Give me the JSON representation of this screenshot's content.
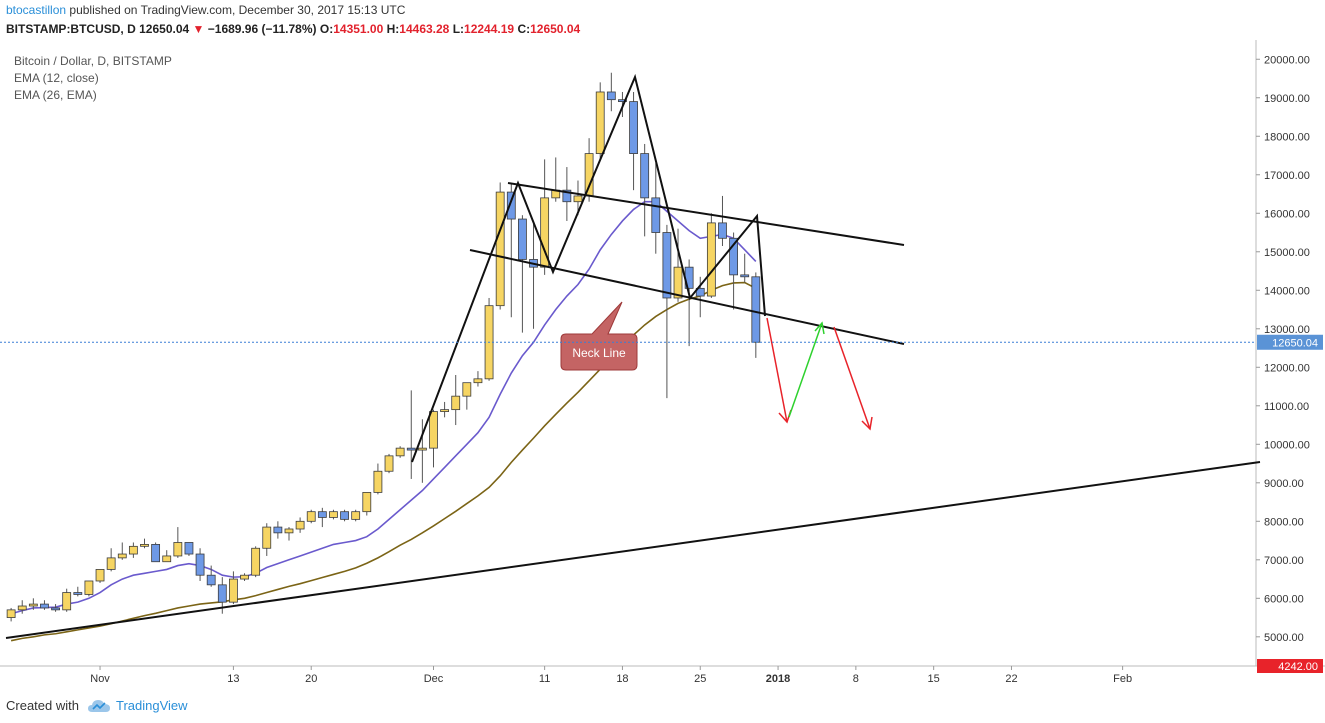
{
  "header": {
    "author": "btocastillon",
    "published": "published on TradingView.com, December 30, 2017 15:13 UTC",
    "symbol": "BITSTAMP:BTCUSD, D",
    "last": "12650.04",
    "change": "−1689.96 (−11.78%)",
    "o_label": "O:",
    "o": "14351.00",
    "h_label": "H:",
    "h": "14463.28",
    "l_label": "L:",
    "l": "12244.19",
    "c_label": "C:",
    "c": "12650.04"
  },
  "legend": {
    "title": "Bitcoin / Dollar, D, BITSTAMP",
    "ema1": "EMA (12, close)",
    "ema2": "EMA (26, EMA)"
  },
  "footer": {
    "created": "Created with",
    "brand": "TradingView"
  },
  "chart_data": {
    "type": "candlestick",
    "title": "Bitcoin / Dollar, D, BITSTAMP",
    "yaxis": {
      "range": [
        4242,
        20500
      ],
      "ticks": [
        5000,
        6000,
        7000,
        8000,
        9000,
        10000,
        11000,
        12000,
        13000,
        14000,
        15000,
        16000,
        17000,
        18000,
        19000,
        20000
      ],
      "tick_labels": [
        "5000.00",
        "6000.00",
        "7000.00",
        "8000.00",
        "9000.00",
        "10000.00",
        "11000.00",
        "12000.00",
        "13000.00",
        "14000.00",
        "15000.00",
        "16000.00",
        "17000.00",
        "18000.00",
        "19000.00",
        "20000.00"
      ]
    },
    "xaxis": {
      "range": [
        "2017-10-23",
        "2018-02-13"
      ],
      "ticks": [
        {
          "date": "2017-11-01",
          "label": "Nov"
        },
        {
          "date": "2017-11-13",
          "label": "13"
        },
        {
          "date": "2017-11-20",
          "label": "20"
        },
        {
          "date": "2017-12-01",
          "label": "Dec"
        },
        {
          "date": "2017-12-11",
          "label": "11"
        },
        {
          "date": "2017-12-18",
          "label": "18"
        },
        {
          "date": "2017-12-25",
          "label": "25"
        },
        {
          "date": "2018-01-01",
          "label": "2018"
        },
        {
          "date": "2018-01-08",
          "label": "8"
        },
        {
          "date": "2018-01-15",
          "label": "15"
        },
        {
          "date": "2018-01-22",
          "label": "22"
        },
        {
          "date": "2018-02-01",
          "label": "Feb"
        }
      ]
    },
    "price_line": {
      "value": 12650.04,
      "label": "12650.04"
    },
    "low_marker": {
      "value": 4242,
      "label": "4242.00"
    },
    "candles": [
      {
        "date": "2017-10-24",
        "o": 5500,
        "h": 5750,
        "l": 5400,
        "c": 5700
      },
      {
        "date": "2017-10-25",
        "o": 5700,
        "h": 5950,
        "l": 5600,
        "c": 5800
      },
      {
        "date": "2017-10-26",
        "o": 5800,
        "h": 6000,
        "l": 5700,
        "c": 5850
      },
      {
        "date": "2017-10-27",
        "o": 5850,
        "h": 5950,
        "l": 5700,
        "c": 5750
      },
      {
        "date": "2017-10-28",
        "o": 5750,
        "h": 5850,
        "l": 5650,
        "c": 5700
      },
      {
        "date": "2017-10-29",
        "o": 5700,
        "h": 6250,
        "l": 5650,
        "c": 6150
      },
      {
        "date": "2017-10-30",
        "o": 6150,
        "h": 6300,
        "l": 6050,
        "c": 6100
      },
      {
        "date": "2017-10-31",
        "o": 6100,
        "h": 6450,
        "l": 6050,
        "c": 6450
      },
      {
        "date": "2017-11-01",
        "o": 6450,
        "h": 6750,
        "l": 6400,
        "c": 6750
      },
      {
        "date": "2017-11-02",
        "o": 6750,
        "h": 7300,
        "l": 6700,
        "c": 7050
      },
      {
        "date": "2017-11-03",
        "o": 7050,
        "h": 7450,
        "l": 7000,
        "c": 7150
      },
      {
        "date": "2017-11-04",
        "o": 7150,
        "h": 7450,
        "l": 7050,
        "c": 7350
      },
      {
        "date": "2017-11-05",
        "o": 7350,
        "h": 7550,
        "l": 7300,
        "c": 7400
      },
      {
        "date": "2017-11-06",
        "o": 7400,
        "h": 7450,
        "l": 6950,
        "c": 6950
      },
      {
        "date": "2017-11-07",
        "o": 6950,
        "h": 7250,
        "l": 6950,
        "c": 7100
      },
      {
        "date": "2017-11-08",
        "o": 7100,
        "h": 7850,
        "l": 7050,
        "c": 7450
      },
      {
        "date": "2017-11-09",
        "o": 7450,
        "h": 7450,
        "l": 7100,
        "c": 7150
      },
      {
        "date": "2017-11-10",
        "o": 7150,
        "h": 7300,
        "l": 6450,
        "c": 6600
      },
      {
        "date": "2017-11-11",
        "o": 6600,
        "h": 6850,
        "l": 6300,
        "c": 6350
      },
      {
        "date": "2017-11-12",
        "o": 6350,
        "h": 6550,
        "l": 5600,
        "c": 5900
      },
      {
        "date": "2017-11-13",
        "o": 5900,
        "h": 6700,
        "l": 5850,
        "c": 6500
      },
      {
        "date": "2017-11-14",
        "o": 6500,
        "h": 6650,
        "l": 6450,
        "c": 6600
      },
      {
        "date": "2017-11-15",
        "o": 6600,
        "h": 7350,
        "l": 6550,
        "c": 7300
      },
      {
        "date": "2017-11-16",
        "o": 7300,
        "h": 7950,
        "l": 7100,
        "c": 7850
      },
      {
        "date": "2017-11-17",
        "o": 7850,
        "h": 8000,
        "l": 7550,
        "c": 7700
      },
      {
        "date": "2017-11-18",
        "o": 7700,
        "h": 7850,
        "l": 7500,
        "c": 7800
      },
      {
        "date": "2017-11-19",
        "o": 7800,
        "h": 8100,
        "l": 7700,
        "c": 8000
      },
      {
        "date": "2017-11-20",
        "o": 8000,
        "h": 8300,
        "l": 7950,
        "c": 8250
      },
      {
        "date": "2017-11-21",
        "o": 8250,
        "h": 8350,
        "l": 7850,
        "c": 8100
      },
      {
        "date": "2017-11-22",
        "o": 8100,
        "h": 8300,
        "l": 8050,
        "c": 8250
      },
      {
        "date": "2017-11-23",
        "o": 8250,
        "h": 8300,
        "l": 8000,
        "c": 8050
      },
      {
        "date": "2017-11-24",
        "o": 8050,
        "h": 8300,
        "l": 8000,
        "c": 8250
      },
      {
        "date": "2017-11-25",
        "o": 8250,
        "h": 8750,
        "l": 8150,
        "c": 8750
      },
      {
        "date": "2017-11-26",
        "o": 8750,
        "h": 9500,
        "l": 8700,
        "c": 9300
      },
      {
        "date": "2017-11-27",
        "o": 9300,
        "h": 9750,
        "l": 9250,
        "c": 9700
      },
      {
        "date": "2017-11-28",
        "o": 9700,
        "h": 9950,
        "l": 9650,
        "c": 9900
      },
      {
        "date": "2017-11-29",
        "o": 9900,
        "h": 11400,
        "l": 9100,
        "c": 9850
      },
      {
        "date": "2017-11-30",
        "o": 9850,
        "h": 10650,
        "l": 9000,
        "c": 9900
      },
      {
        "date": "2017-12-01",
        "o": 9900,
        "h": 10900,
        "l": 9400,
        "c": 10850
      },
      {
        "date": "2017-12-02",
        "o": 10850,
        "h": 11100,
        "l": 10700,
        "c": 10900
      },
      {
        "date": "2017-12-03",
        "o": 10900,
        "h": 11800,
        "l": 10500,
        "c": 11250
      },
      {
        "date": "2017-12-04",
        "o": 11250,
        "h": 11600,
        "l": 10900,
        "c": 11600
      },
      {
        "date": "2017-12-05",
        "o": 11600,
        "h": 11900,
        "l": 11500,
        "c": 11700
      },
      {
        "date": "2017-12-06",
        "o": 11700,
        "h": 13800,
        "l": 11650,
        "c": 13600
      },
      {
        "date": "2017-12-07",
        "o": 13600,
        "h": 16800,
        "l": 13500,
        "c": 16550
      },
      {
        "date": "2017-12-08",
        "o": 16550,
        "h": 16750,
        "l": 13300,
        "c": 15850
      },
      {
        "date": "2017-12-09",
        "o": 15850,
        "h": 15950,
        "l": 12900,
        "c": 14800
      },
      {
        "date": "2017-12-10",
        "o": 14800,
        "h": 15800,
        "l": 13000,
        "c": 14600
      },
      {
        "date": "2017-12-11",
        "o": 14600,
        "h": 17400,
        "l": 14400,
        "c": 16400
      },
      {
        "date": "2017-12-12",
        "o": 16400,
        "h": 17450,
        "l": 16300,
        "c": 16600
      },
      {
        "date": "2017-12-13",
        "o": 16600,
        "h": 17200,
        "l": 15800,
        "c": 16300
      },
      {
        "date": "2017-12-14",
        "o": 16300,
        "h": 16850,
        "l": 15950,
        "c": 16450
      },
      {
        "date": "2017-12-15",
        "o": 16450,
        "h": 17950,
        "l": 16300,
        "c": 17550
      },
      {
        "date": "2017-12-16",
        "o": 17550,
        "h": 19400,
        "l": 17400,
        "c": 19150
      },
      {
        "date": "2017-12-17",
        "o": 19150,
        "h": 19650,
        "l": 18650,
        "c": 18950
      },
      {
        "date": "2017-12-18",
        "o": 18950,
        "h": 19150,
        "l": 18500,
        "c": 18900
      },
      {
        "date": "2017-12-19",
        "o": 18900,
        "h": 19150,
        "l": 16600,
        "c": 17550
      },
      {
        "date": "2017-12-20",
        "o": 17550,
        "h": 17800,
        "l": 15400,
        "c": 16400
      },
      {
        "date": "2017-12-21",
        "o": 16400,
        "h": 17300,
        "l": 14950,
        "c": 15500
      },
      {
        "date": "2017-12-22",
        "o": 15500,
        "h": 15700,
        "l": 11200,
        "c": 13800
      },
      {
        "date": "2017-12-23",
        "o": 13800,
        "h": 15600,
        "l": 13700,
        "c": 14600
      },
      {
        "date": "2017-12-24",
        "o": 14600,
        "h": 14800,
        "l": 12550,
        "c": 14050
      },
      {
        "date": "2017-12-25",
        "o": 14050,
        "h": 14350,
        "l": 13300,
        "c": 13850
      },
      {
        "date": "2017-12-26",
        "o": 13850,
        "h": 16000,
        "l": 13800,
        "c": 15750
      },
      {
        "date": "2017-12-27",
        "o": 15750,
        "h": 16450,
        "l": 15150,
        "c": 15350
      },
      {
        "date": "2017-12-28",
        "o": 15350,
        "h": 15500,
        "l": 13500,
        "c": 14400
      },
      {
        "date": "2017-12-29",
        "o": 14400,
        "h": 14950,
        "l": 14200,
        "c": 14350
      },
      {
        "date": "2017-12-30",
        "o": 14350,
        "h": 14463.28,
        "l": 12244.19,
        "c": 12650.04
      }
    ],
    "ema_12": [
      5600,
      5680,
      5750,
      5760,
      5770,
      5850,
      5900,
      6000,
      6150,
      6350,
      6500,
      6600,
      6650,
      6700,
      6750,
      6850,
      6900,
      6850,
      6750,
      6600,
      6550,
      6560,
      6650,
      6800,
      6900,
      7000,
      7100,
      7200,
      7300,
      7400,
      7450,
      7500,
      7600,
      7800,
      8050,
      8300,
      8550,
      8800,
      9100,
      9400,
      9700,
      10000,
      10300,
      10700,
      11300,
      11850,
      12300,
      12650,
      13100,
      13500,
      13850,
      14150,
      14550,
      15050,
      15450,
      15800,
      16100,
      16300,
      16300,
      16050,
      15800,
      15550,
      15350,
      15400,
      15450,
      15350,
      15050,
      14750
    ],
    "ema_26": [
      4900,
      4960,
      5000,
      5050,
      5080,
      5130,
      5180,
      5230,
      5280,
      5340,
      5410,
      5480,
      5550,
      5610,
      5680,
      5750,
      5800,
      5850,
      5880,
      5910,
      5960,
      6000,
      6070,
      6150,
      6230,
      6310,
      6380,
      6460,
      6540,
      6620,
      6700,
      6790,
      6910,
      7050,
      7210,
      7380,
      7530,
      7700,
      7880,
      8070,
      8260,
      8460,
      8660,
      8880,
      9180,
      9530,
      9850,
      10160,
      10480,
      10780,
      11070,
      11350,
      11650,
      11950,
      12250,
      12550,
      12840,
      13100,
      13320,
      13500,
      13660,
      13770,
      13850,
      14000,
      14120,
      14190,
      14200,
      14050
    ],
    "annotations": [
      {
        "type": "text",
        "label": "Neck Line"
      }
    ]
  }
}
